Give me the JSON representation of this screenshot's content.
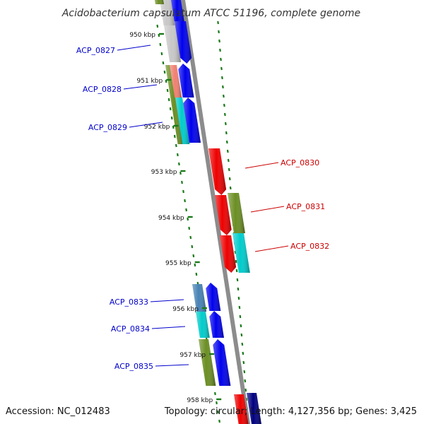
{
  "title": "Acidobacterium capsulatum ATCC 51196, complete genome",
  "accession": "Accession: NC_012483",
  "topology": "Topology: circular; Length: 4,127,356 bp; Genes: 3,425",
  "ticks": [
    "950 kbp",
    "951 kbp",
    "952 kbp",
    "953 kbp",
    "954 kbp",
    "955 kbp",
    "956 kbp",
    "957 kbp",
    "958 kbp"
  ],
  "colors": {
    "plus_label": "#0000cc",
    "minus_label": "#cc0000",
    "ruler": "#1a7a1a",
    "backbone": "#8c8c8c",
    "blue": "#0000ee",
    "red": "#ee0000",
    "olive": "#6b8e23",
    "cyan": "#00cccc",
    "salmon": "#f08070",
    "steel": "#4682b4",
    "grey": "#c8c8c8",
    "navy": "#000080"
  },
  "genes": [
    {
      "label": "ACP_0827",
      "strand": "+"
    },
    {
      "label": "ACP_0828",
      "strand": "+"
    },
    {
      "label": "ACP_0829",
      "strand": "+"
    },
    {
      "label": "ACP_0830",
      "strand": "-"
    },
    {
      "label": "ACP_0831",
      "strand": "-"
    },
    {
      "label": "ACP_0832",
      "strand": "-"
    },
    {
      "label": "ACP_0833",
      "strand": "+"
    },
    {
      "label": "ACP_0834",
      "strand": "+"
    },
    {
      "label": "ACP_0835",
      "strand": "+"
    }
  ]
}
